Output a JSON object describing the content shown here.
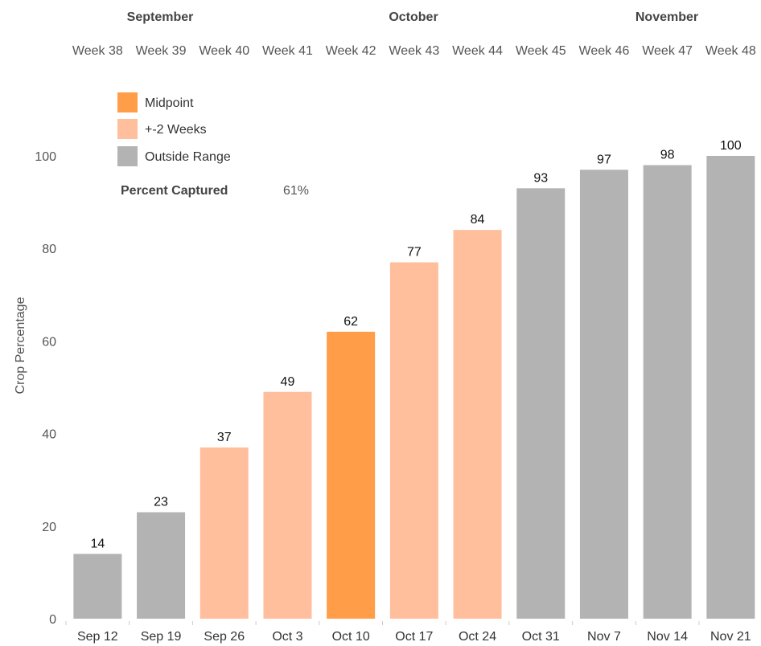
{
  "months": [
    "September",
    "October",
    "November"
  ],
  "weeks": [
    "Week 38",
    "Week 39",
    "Week 40",
    "Week 41",
    "Week 42",
    "Week 43",
    "Week 44",
    "Week 45",
    "Week 46",
    "Week 47",
    "Week 48"
  ],
  "legend": [
    {
      "label": "Midpoint",
      "color": "#ff9d48"
    },
    {
      "label": "+-2 Weeks",
      "color": "#ffbe9c"
    },
    {
      "label": "Outside Range",
      "color": "#b3b3b3"
    }
  ],
  "percent_captured": {
    "label": "Percent Captured",
    "value": "61%"
  },
  "chart_data": {
    "type": "bar",
    "categories": [
      "Sep 12",
      "Sep 19",
      "Sep 26",
      "Oct 3",
      "Oct 10",
      "Oct 17",
      "Oct 24",
      "Oct 31",
      "Nov 7",
      "Nov 14",
      "Nov 21"
    ],
    "values": [
      14,
      23,
      37,
      49,
      62,
      77,
      84,
      93,
      97,
      98,
      100
    ],
    "bar_groups": [
      "Outside Range",
      "Outside Range",
      "+-2 Weeks",
      "+-2 Weeks",
      "Midpoint",
      "+-2 Weeks",
      "+-2 Weeks",
      "Outside Range",
      "Outside Range",
      "Outside Range",
      "Outside Range"
    ],
    "ylabel": "Crop Percentage",
    "yticks": [
      0,
      20,
      40,
      60,
      80,
      100
    ],
    "ylim": [
      0,
      100
    ],
    "grid": false,
    "legend_position": "top-left"
  }
}
